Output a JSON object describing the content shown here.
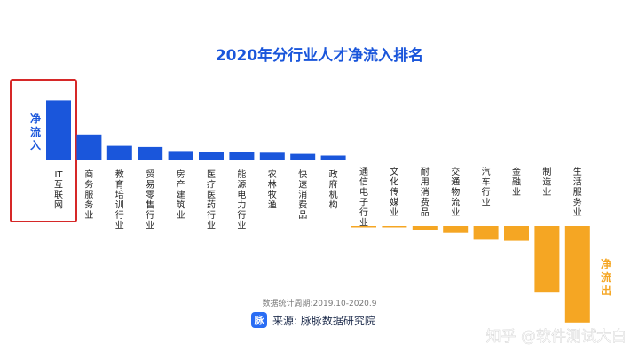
{
  "chart_data": {
    "type": "bar",
    "title": "2020年分行业人才净流入排名",
    "categories": [
      "IT互联网",
      "商务服务业",
      "教育培训行业",
      "贸易零售行业",
      "房产建筑业",
      "医疗医药行业",
      "能源电力行业",
      "农林牧渔",
      "快速消费品",
      "政府机构",
      "通信电子行业",
      "文化传媒业",
      "耐用消费品",
      "交通物流业",
      "汽车行业",
      "金融业",
      "制造业",
      "生活服务业"
    ],
    "values": [
      5.2,
      2.2,
      1.2,
      1.1,
      0.75,
      0.7,
      0.65,
      0.6,
      0.5,
      0.35,
      -0.05,
      -0.1,
      -0.35,
      -0.6,
      -1.2,
      -1.3,
      -5.8,
      -8.5
    ],
    "ylim": [
      -9,
      6
    ],
    "grid": false,
    "legend": "none",
    "positive_label": "净流入",
    "negative_label": "净流出",
    "positive_color": "#1a56db",
    "negative_color": "#f5a623",
    "highlight_category": "IT互联网",
    "highlight_color": "#d62828"
  },
  "footer": {
    "period": "数据统计周期:2019.10-2020.9",
    "source_badge": "脉",
    "source_text": "来源: 脉脉数据研究院"
  },
  "watermark": "知乎 @软件测试大白"
}
